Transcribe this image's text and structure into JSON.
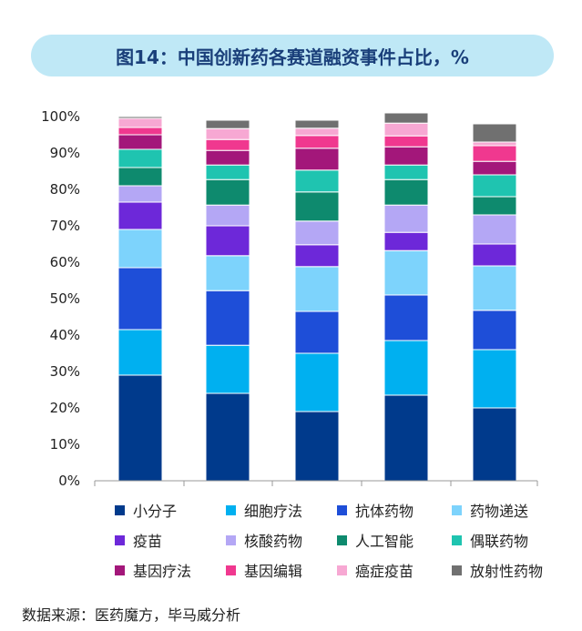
{
  "chart_data": {
    "type": "bar",
    "stacked": true,
    "title": "图14：中国创新药各赛道融资事件占比，%",
    "categories": [
      "",
      "",
      "",
      "",
      ""
    ],
    "ylim": [
      0,
      100
    ],
    "yticks": [
      "0%",
      "10%",
      "20%",
      "30%",
      "40%",
      "50%",
      "60%",
      "70%",
      "80%",
      "90%",
      "100%"
    ],
    "legend_position": "bottom",
    "series": [
      {
        "name": "小分子",
        "color": "#003a8c",
        "values": [
          29,
          24,
          19,
          23.5,
          20
        ]
      },
      {
        "name": "细胞疗法",
        "color": "#00b0f0",
        "values": [
          12.5,
          13.2,
          16,
          15,
          16
        ]
      },
      {
        "name": "抗体药物",
        "color": "#1e4ed8",
        "values": [
          17,
          15,
          11.5,
          12.5,
          10.8
        ]
      },
      {
        "name": "药物递送",
        "color": "#7dd3fc",
        "values": [
          10.5,
          9.6,
          12.3,
          12.2,
          12.2
        ]
      },
      {
        "name": "疫苗",
        "color": "#6d28d9",
        "values": [
          7.5,
          8.2,
          6,
          5,
          6
        ]
      },
      {
        "name": "核酸药物",
        "color": "#b4a7f5",
        "values": [
          4.5,
          5.7,
          6.5,
          7.5,
          8
        ]
      },
      {
        "name": "人工智能",
        "color": "#0e8a6e",
        "values": [
          5,
          7,
          8,
          7,
          5
        ]
      },
      {
        "name": "偶联药物",
        "color": "#1fc4b0",
        "values": [
          5,
          4,
          6,
          4,
          6
        ]
      },
      {
        "name": "基因疗法",
        "color": "#a3177a",
        "values": [
          4,
          4,
          6,
          5,
          3.7
        ]
      },
      {
        "name": "基因编辑",
        "color": "#f0388f",
        "values": [
          2,
          3,
          3.5,
          3,
          4.3
        ]
      },
      {
        "name": "癌症疫苗",
        "color": "#f7a8d3",
        "values": [
          2.5,
          3,
          2,
          3.5,
          1
        ]
      },
      {
        "name": "放射性药物",
        "color": "#707070",
        "values": [
          0.5,
          2.3,
          2.2,
          2.8,
          5
        ]
      }
    ]
  },
  "footer": {
    "source": "数据来源：医药魔方，毕马威分析"
  }
}
